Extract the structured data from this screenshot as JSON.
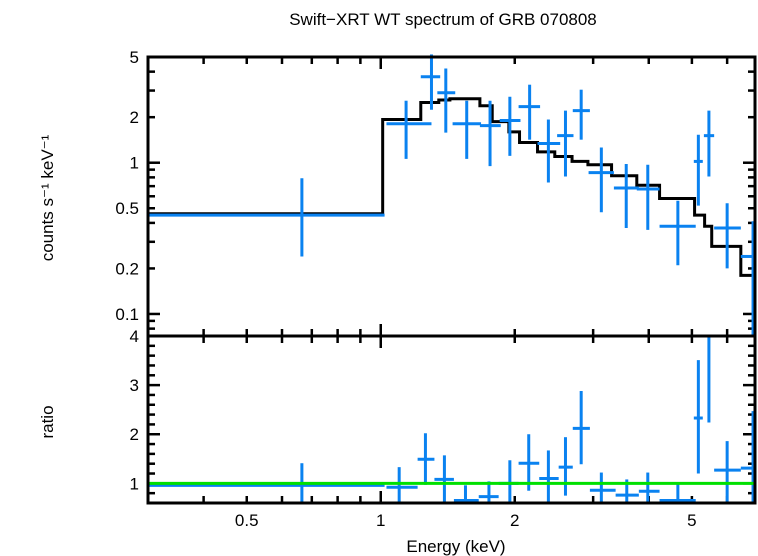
{
  "chart_data": [
    {
      "type": "scatter",
      "panel": "spectrum",
      "title": "Swift−XRT WT spectrum of GRB 070808",
      "xlabel": "Energy (keV)",
      "ylabel": "counts s⁻¹ keV⁻¹",
      "xscale": "log",
      "yscale": "log",
      "xlim": [
        0.3,
        6.93
      ],
      "ylim": [
        0.0715,
        5
      ],
      "y_ticks": [
        {
          "value": 5,
          "label": "5"
        },
        {
          "value": 2,
          "label": "2"
        },
        {
          "value": 1,
          "label": "1"
        },
        {
          "value": 0.5,
          "label": "0.5"
        },
        {
          "value": 0.2,
          "label": "0.2"
        },
        {
          "value": 0.1,
          "label": "0.1"
        }
      ],
      "data_color": "#0a82f0",
      "model_color": "#000000",
      "series": [
        {
          "name": "data",
          "points": [
            {
              "xlo": 0.3,
              "xhi": 1.02,
              "y": 0.45,
              "yhi": 0.79,
              "ylo": 0.24,
              "xc": 0.665
            },
            {
              "xlo": 1.03,
              "xhi": 1.3,
              "y": 1.81,
              "yhi": 2.57,
              "ylo": 1.06,
              "xc": 1.14
            },
            {
              "xlo": 1.23,
              "xhi": 1.36,
              "y": 3.7,
              "yhi": 5.2,
              "ylo": 2.24,
              "xc": 1.3
            },
            {
              "xlo": 1.34,
              "xhi": 1.47,
              "y": 2.9,
              "yhi": 4.2,
              "ylo": 1.58,
              "xc": 1.4
            },
            {
              "xlo": 1.45,
              "xhi": 1.68,
              "y": 1.81,
              "yhi": 2.57,
              "ylo": 1.06,
              "xc": 1.56
            },
            {
              "xlo": 1.67,
              "xhi": 1.86,
              "y": 1.76,
              "yhi": 2.57,
              "ylo": 0.95,
              "xc": 1.76
            },
            {
              "xlo": 1.85,
              "xhi": 2.06,
              "y": 1.9,
              "yhi": 2.73,
              "ylo": 1.11,
              "xc": 1.95
            },
            {
              "xlo": 2.04,
              "xhi": 2.28,
              "y": 2.35,
              "yhi": 3.28,
              "ylo": 1.42,
              "xc": 2.16
            },
            {
              "xlo": 2.25,
              "xhi": 2.53,
              "y": 1.34,
              "yhi": 1.93,
              "ylo": 0.74,
              "xc": 2.38
            },
            {
              "xlo": 2.49,
              "xhi": 2.71,
              "y": 1.51,
              "yhi": 2.21,
              "ylo": 0.81,
              "xc": 2.6
            },
            {
              "xlo": 2.7,
              "xhi": 2.95,
              "y": 2.21,
              "yhi": 3.04,
              "ylo": 1.42,
              "xc": 2.82
            },
            {
              "xlo": 2.93,
              "xhi": 3.34,
              "y": 0.86,
              "yhi": 1.26,
              "ylo": 0.47,
              "xc": 3.13
            },
            {
              "xlo": 3.34,
              "xhi": 3.8,
              "y": 0.68,
              "yhi": 0.98,
              "ylo": 0.37,
              "xc": 3.56
            },
            {
              "xlo": 3.76,
              "xhi": 4.23,
              "y": 0.67,
              "yhi": 0.97,
              "ylo": 0.36,
              "xc": 3.98
            },
            {
              "xlo": 4.23,
              "xhi": 5.1,
              "y": 0.38,
              "yhi": 0.56,
              "ylo": 0.21,
              "xc": 4.65
            },
            {
              "xlo": 5.05,
              "xhi": 5.29,
              "y": 1.02,
              "yhi": 1.53,
              "ylo": 0.52,
              "xc": 5.17
            },
            {
              "xlo": 5.32,
              "xhi": 5.61,
              "y": 1.51,
              "yhi": 2.21,
              "ylo": 0.81,
              "xc": 5.46
            },
            {
              "xlo": 5.61,
              "xhi": 6.44,
              "y": 0.37,
              "yhi": 0.54,
              "ylo": 0.2,
              "xc": 6.0
            },
            {
              "xlo": 6.44,
              "xhi": 6.93,
              "y": 0.24,
              "yhi": 0.41,
              "ylo": 0.0715,
              "xc": 6.86
            }
          ]
        },
        {
          "name": "model",
          "steps": [
            {
              "xlo": 0.3,
              "xhi": 1.01,
              "y": 0.46
            },
            {
              "xlo": 1.01,
              "xhi": 1.23,
              "y": 1.93
            },
            {
              "xlo": 1.23,
              "xhi": 1.35,
              "y": 2.5
            },
            {
              "xlo": 1.35,
              "xhi": 1.43,
              "y": 2.6
            },
            {
              "xlo": 1.43,
              "xhi": 1.67,
              "y": 2.65
            },
            {
              "xlo": 1.67,
              "xhi": 1.78,
              "y": 2.38
            },
            {
              "xlo": 1.78,
              "xhi": 1.94,
              "y": 1.87
            },
            {
              "xlo": 1.94,
              "xhi": 2.05,
              "y": 1.6
            },
            {
              "xlo": 2.05,
              "xhi": 2.25,
              "y": 1.36
            },
            {
              "xlo": 2.25,
              "xhi": 2.46,
              "y": 1.18
            },
            {
              "xlo": 2.46,
              "xhi": 2.69,
              "y": 1.1
            },
            {
              "xlo": 2.69,
              "xhi": 2.92,
              "y": 1.02
            },
            {
              "xlo": 2.92,
              "xhi": 3.3,
              "y": 0.97
            },
            {
              "xlo": 3.3,
              "xhi": 3.76,
              "y": 0.82
            },
            {
              "xlo": 3.76,
              "xhi": 4.23,
              "y": 0.71
            },
            {
              "xlo": 4.23,
              "xhi": 5.07,
              "y": 0.58
            },
            {
              "xlo": 5.07,
              "xhi": 5.34,
              "y": 0.45
            },
            {
              "xlo": 5.34,
              "xhi": 5.54,
              "y": 0.38
            },
            {
              "xlo": 5.54,
              "xhi": 6.44,
              "y": 0.28
            },
            {
              "xlo": 6.44,
              "xhi": 6.93,
              "y": 0.18
            }
          ]
        }
      ]
    },
    {
      "type": "scatter",
      "panel": "ratio",
      "xlabel": "Energy (keV)",
      "ylabel": "ratio",
      "xscale": "log",
      "yscale": "linear",
      "xlim": [
        0.3,
        6.93
      ],
      "ylim": [
        0.6,
        4.0
      ],
      "x_ticks": [
        {
          "value": 0.5,
          "label": "0.5"
        },
        {
          "value": 1,
          "label": "1"
        },
        {
          "value": 2,
          "label": "2"
        },
        {
          "value": 5,
          "label": "5"
        }
      ],
      "y_ticks": [
        {
          "value": 4,
          "label": "4"
        },
        {
          "value": 3,
          "label": "3"
        },
        {
          "value": 2,
          "label": "2"
        },
        {
          "value": 1,
          "label": "1"
        }
      ],
      "reference_line": {
        "y": 1,
        "color": "#00e000"
      },
      "data_color": "#0a82f0",
      "series": [
        {
          "name": "ratio",
          "points": [
            {
              "xlo": 0.3,
              "xhi": 1.02,
              "y": 0.96,
              "yhi": 1.41,
              "ylo": 0.6,
              "xc": 0.665
            },
            {
              "xlo": 1.03,
              "xhi": 1.21,
              "y": 0.92,
              "yhi": 1.33,
              "ylo": 0.6,
              "xc": 1.1
            },
            {
              "xlo": 1.21,
              "xhi": 1.32,
              "y": 1.49,
              "yhi": 2.02,
              "ylo": 0.97,
              "xc": 1.26
            },
            {
              "xlo": 1.32,
              "xhi": 1.46,
              "y": 1.08,
              "yhi": 1.57,
              "ylo": 0.6,
              "xc": 1.39
            },
            {
              "xlo": 1.46,
              "xhi": 1.66,
              "y": 0.65,
              "yhi": 0.96,
              "ylo": 0.6,
              "xc": 1.55
            },
            {
              "xlo": 1.66,
              "xhi": 1.84,
              "y": 0.73,
              "yhi": 1.04,
              "ylo": 0.6,
              "xc": 1.75
            },
            {
              "xlo": 1.84,
              "xhi": 2.04,
              "y": 1.0,
              "yhi": 1.47,
              "ylo": 0.6,
              "xc": 1.95
            },
            {
              "xlo": 2.04,
              "xhi": 2.27,
              "y": 1.41,
              "yhi": 2.0,
              "ylo": 0.85,
              "xc": 2.15
            },
            {
              "xlo": 2.27,
              "xhi": 2.51,
              "y": 1.1,
              "yhi": 1.67,
              "ylo": 0.6,
              "xc": 2.38
            },
            {
              "xlo": 2.51,
              "xhi": 2.7,
              "y": 1.33,
              "yhi": 1.94,
              "ylo": 0.75,
              "xc": 2.6
            },
            {
              "xlo": 2.7,
              "xhi": 2.95,
              "y": 2.12,
              "yhi": 2.88,
              "ylo": 1.39,
              "xc": 2.82
            },
            {
              "xlo": 2.95,
              "xhi": 3.37,
              "y": 0.86,
              "yhi": 1.22,
              "ylo": 0.6,
              "xc": 3.13
            },
            {
              "xlo": 3.37,
              "xhi": 3.8,
              "y": 0.76,
              "yhi": 1.08,
              "ylo": 0.6,
              "xc": 3.57
            },
            {
              "xlo": 3.8,
              "xhi": 4.23,
              "y": 0.84,
              "yhi": 1.22,
              "ylo": 0.6,
              "xc": 3.98
            },
            {
              "xlo": 4.23,
              "xhi": 5.1,
              "y": 0.65,
              "yhi": 0.98,
              "ylo": 0.6,
              "xc": 4.65
            },
            {
              "xlo": 5.05,
              "xhi": 5.29,
              "y": 2.33,
              "yhi": 3.51,
              "ylo": 1.2,
              "xc": 5.17
            },
            {
              "xlo": 5.32,
              "xhi": 5.61,
              "y": 4.0,
              "yhi": 4.0,
              "ylo": 2.24,
              "xc": 5.46
            },
            {
              "xlo": 5.61,
              "xhi": 6.44,
              "y": 1.27,
              "yhi": 1.86,
              "ylo": 0.6,
              "xc": 6.0
            },
            {
              "xlo": 6.44,
              "xhi": 6.93,
              "y": 1.31,
              "yhi": 2.47,
              "ylo": 0.6,
              "xc": 6.86
            }
          ]
        }
      ]
    }
  ]
}
